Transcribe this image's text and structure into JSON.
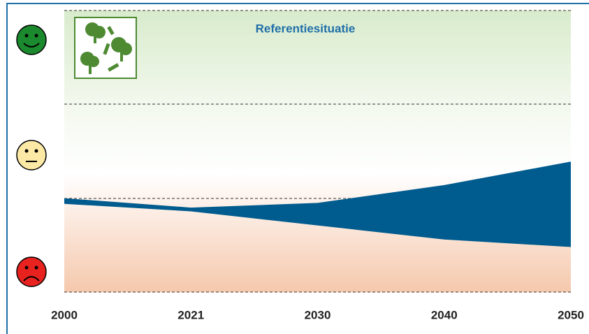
{
  "chart_data": {
    "type": "area",
    "title": "Referentiesituatie",
    "categories": [
      "2000",
      "2021",
      "2030",
      "2040",
      "2050"
    ],
    "band": {
      "upper": [
        1.0,
        0.9,
        0.95,
        1.14,
        1.39
      ],
      "lower": [
        0.94,
        0.86,
        0.71,
        0.56,
        0.48
      ]
    },
    "color": "#005b8e",
    "ylim": [
      0,
      3
    ]
  }
}
